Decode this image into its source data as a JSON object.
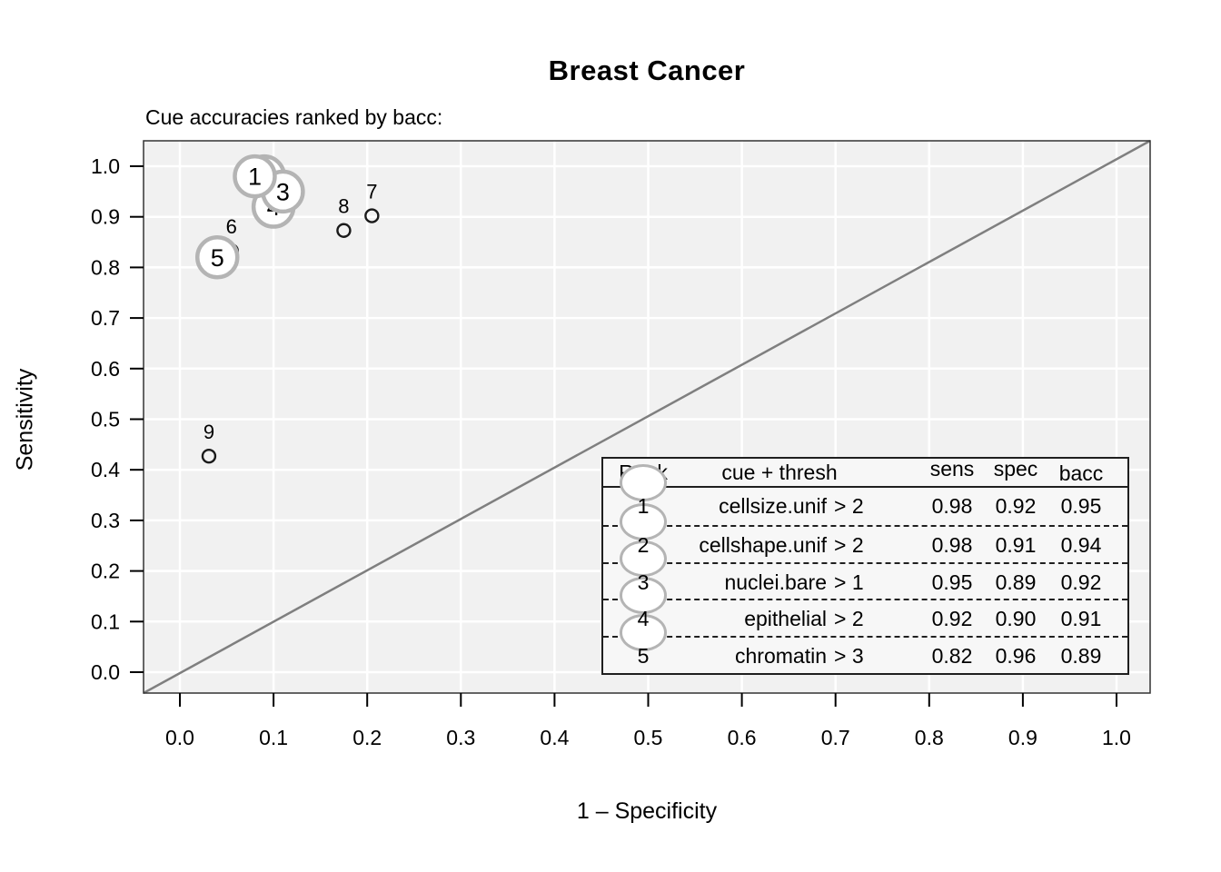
{
  "chart_data": {
    "type": "scatter",
    "title": "Breast Cancer",
    "subtitle": "Cue accuracies ranked by bacc:",
    "xlabel": "1 – Specificity",
    "ylabel": "Sensitivity",
    "xlim": [
      0,
      1
    ],
    "ylim": [
      0,
      1
    ],
    "grid": true,
    "diagonal": true,
    "legend_position": "none",
    "x_ticks": [
      "0.0",
      "0.1",
      "0.2",
      "0.3",
      "0.4",
      "0.5",
      "0.6",
      "0.7",
      "0.8",
      "0.9",
      "1.0"
    ],
    "y_ticks": [
      "0.0",
      "0.1",
      "0.2",
      "0.3",
      "0.4",
      "0.5",
      "0.6",
      "0.7",
      "0.8",
      "0.9",
      "1.0"
    ],
    "points": [
      {
        "rank": 1,
        "x": 0.08,
        "y": 0.98,
        "marker": "ball"
      },
      {
        "rank": 2,
        "x": 0.09,
        "y": 0.98,
        "marker": "ball"
      },
      {
        "rank": 3,
        "x": 0.11,
        "y": 0.95,
        "marker": "ball"
      },
      {
        "rank": 4,
        "x": 0.1,
        "y": 0.92,
        "marker": "ball"
      },
      {
        "rank": 5,
        "x": 0.04,
        "y": 0.82,
        "marker": "ball"
      },
      {
        "rank": 6,
        "x": 0.055,
        "y": 0.833,
        "marker": "circle"
      },
      {
        "rank": 7,
        "x": 0.205,
        "y": 0.902,
        "marker": "circle"
      },
      {
        "rank": 8,
        "x": 0.175,
        "y": 0.873,
        "marker": "circle"
      },
      {
        "rank": 9,
        "x": 0.031,
        "y": 0.427,
        "marker": "circle"
      }
    ],
    "ball_draw_order": [
      2,
      4,
      3,
      1,
      5
    ]
  },
  "table": {
    "headers": [
      "Rank",
      "cue + thresh",
      "sens",
      "spec",
      "bacc"
    ],
    "rows": [
      {
        "rank": "1",
        "cue": "cellsize.unif",
        "thresh": "> 2",
        "sens": "0.98",
        "spec": "0.92",
        "bacc": "0.95"
      },
      {
        "rank": "2",
        "cue": "cellshape.unif",
        "thresh": "> 2",
        "sens": "0.98",
        "spec": "0.91",
        "bacc": "0.94"
      },
      {
        "rank": "3",
        "cue": "nuclei.bare",
        "thresh": "> 1",
        "sens": "0.95",
        "spec": "0.89",
        "bacc": "0.92"
      },
      {
        "rank": "4",
        "cue": "epithelial",
        "thresh": "> 2",
        "sens": "0.92",
        "spec": "0.90",
        "bacc": "0.91"
      },
      {
        "rank": "5",
        "cue": "chromatin",
        "thresh": "> 3",
        "sens": "0.82",
        "spec": "0.96",
        "bacc": "0.89"
      }
    ]
  },
  "colors": {
    "plot_bg": "#f1f1f1",
    "grid_line": "#ffffff",
    "diagonal_line": "#7f7f7f",
    "plot_border": "#333333",
    "axis_tick": "#000000",
    "ball_fill": "#ffffff",
    "ball_stroke": "#b4b4b4",
    "point_stroke": "#1a1a1a",
    "table_bg": "#f7f7f7",
    "table_border": "#1f1f1f"
  }
}
